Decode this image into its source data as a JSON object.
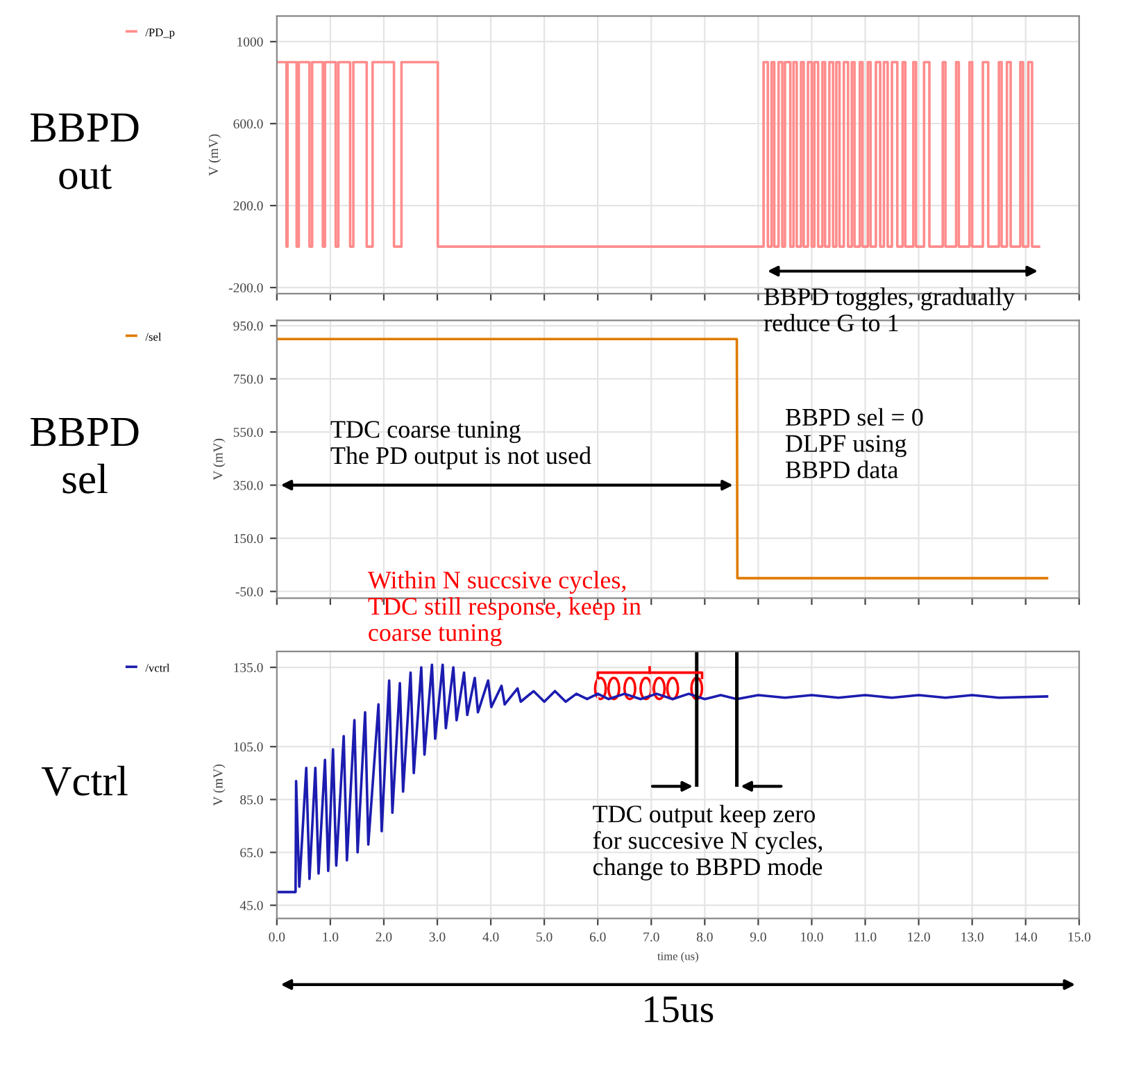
{
  "chart_data": [
    {
      "type": "step",
      "ylabel": "V (mV)",
      "xlim": [
        0,
        15
      ],
      "ylim": [
        -230,
        1125
      ],
      "yticks": [
        {
          "value": -200,
          "label": "-200.0"
        },
        {
          "value": 200,
          "label": "200.0"
        },
        {
          "value": 600,
          "label": "600.0"
        },
        {
          "value": 1000,
          "label": "1000"
        }
      ],
      "xticks": [
        {
          "value": 0,
          "label": null
        },
        {
          "value": 1,
          "label": null
        },
        {
          "value": 2,
          "label": null
        },
        {
          "value": 3,
          "label": null
        },
        {
          "value": 4,
          "label": null
        },
        {
          "value": 5,
          "label": null
        },
        {
          "value": 6,
          "label": null
        },
        {
          "value": 7,
          "label": null
        },
        {
          "value": 8,
          "label": null
        },
        {
          "value": 9,
          "label": null
        },
        {
          "value": 10,
          "label": null
        },
        {
          "value": 11,
          "label": null
        },
        {
          "value": 12,
          "label": null
        },
        {
          "value": 13,
          "label": null
        },
        {
          "value": 14,
          "label": null
        },
        {
          "value": 15,
          "label": null
        }
      ],
      "tick_labels": "y",
      "grid": true,
      "legend": "top left",
      "annotations": [
        "BBPD\nout",
        "BBPD toggles, gradually\nreduce G to 1"
      ],
      "series": [
        {
          "name": "/PD_p",
          "color": "#ff8c8c",
          "x": [
            0,
            0.18,
            0.2,
            0.37,
            0.41,
            0.61,
            0.66,
            0.86,
            0.9,
            1.1,
            1.15,
            1.37,
            1.43,
            1.68,
            1.79,
            2.19,
            2.33,
            3.01,
            9.1,
            9.18,
            9.25,
            9.3,
            9.38,
            9.45,
            9.5,
            9.6,
            9.66,
            9.72,
            9.8,
            9.85,
            9.93,
            10.0,
            10.05,
            10.12,
            10.2,
            10.25,
            10.33,
            10.4,
            10.46,
            10.52,
            10.6,
            10.68,
            10.75,
            10.8,
            10.9,
            10.95,
            11.05,
            11.1,
            11.2,
            11.28,
            11.35,
            11.42,
            11.5,
            11.6,
            11.7,
            11.75,
            11.9,
            11.95,
            12.1,
            12.2,
            12.45,
            12.5,
            12.7,
            12.75,
            12.95,
            13.0,
            13.2,
            13.3,
            13.5,
            13.55,
            13.65,
            13.72,
            13.9,
            13.95,
            14.05,
            14.12,
            14.25
          ],
          "values": [
            900,
            0,
            900,
            0,
            900,
            0,
            900,
            0,
            900,
            0,
            900,
            0,
            900,
            0,
            900,
            0,
            900,
            0,
            900,
            0,
            900,
            0,
            900,
            0,
            900,
            0,
            900,
            0,
            900,
            0,
            900,
            0,
            900,
            0,
            900,
            0,
            900,
            0,
            900,
            0,
            900,
            0,
            900,
            0,
            900,
            0,
            900,
            0,
            900,
            0,
            900,
            0,
            900,
            0,
            900,
            0,
            900,
            0,
            900,
            0,
            900,
            0,
            900,
            0,
            900,
            0,
            900,
            0,
            900,
            0,
            900,
            0,
            900,
            0,
            900,
            0,
            0
          ]
        }
      ]
    },
    {
      "type": "line",
      "ylabel": "V (mV)",
      "xlim": [
        0,
        15
      ],
      "ylim": [
        -75,
        970
      ],
      "yticks": [
        {
          "value": -50,
          "label": "-50.0"
        },
        {
          "value": 150,
          "label": "150.0"
        },
        {
          "value": 350,
          "label": "350.0"
        },
        {
          "value": 550,
          "label": "550.0"
        },
        {
          "value": 750,
          "label": "750.0"
        },
        {
          "value": 950,
          "label": "950.0"
        }
      ],
      "xticks": [
        {
          "value": 0,
          "label": null
        },
        {
          "value": 1,
          "label": null
        },
        {
          "value": 2,
          "label": null
        },
        {
          "value": 3,
          "label": null
        },
        {
          "value": 4,
          "label": null
        },
        {
          "value": 5,
          "label": null
        },
        {
          "value": 6,
          "label": null
        },
        {
          "value": 7,
          "label": null
        },
        {
          "value": 8,
          "label": null
        },
        {
          "value": 9,
          "label": null
        },
        {
          "value": 10,
          "label": null
        },
        {
          "value": 11,
          "label": null
        },
        {
          "value": 12,
          "label": null
        },
        {
          "value": 13,
          "label": null
        },
        {
          "value": 14,
          "label": null
        },
        {
          "value": 15,
          "label": null
        }
      ],
      "tick_labels": "y",
      "grid": true,
      "legend": "top left",
      "annotations": [
        "BBPD\nsel",
        "TDC coarse tuning\nThe PD output is not used",
        "BBPD sel = 0\nDLPF using\nBBPD data"
      ],
      "series": [
        {
          "name": "/sel",
          "color": "#e07b00",
          "x": [
            0,
            8.6,
            8.61,
            14.4
          ],
          "values": [
            900,
            900,
            0,
            0
          ]
        }
      ]
    },
    {
      "type": "line",
      "ylabel": "V (mV)",
      "xlabel": "time (us)",
      "xlim": [
        0,
        15
      ],
      "ylim": [
        40,
        141
      ],
      "yticks": [
        {
          "value": 45,
          "label": "45.0"
        },
        {
          "value": 65,
          "label": "65.0"
        },
        {
          "value": 85,
          "label": "85.0"
        },
        {
          "value": 105,
          "label": "105.0"
        },
        {
          "value": 135,
          "label": "135.0"
        }
      ],
      "xticks": [
        {
          "value": 0,
          "label": "0.0"
        },
        {
          "value": 1,
          "label": "1.0"
        },
        {
          "value": 2,
          "label": "2.0"
        },
        {
          "value": 3,
          "label": "3.0"
        },
        {
          "value": 4,
          "label": "4.0"
        },
        {
          "value": 5,
          "label": "5.0"
        },
        {
          "value": 6,
          "label": "6.0"
        },
        {
          "value": 7,
          "label": "7.0"
        },
        {
          "value": 8,
          "label": "8.0"
        },
        {
          "value": 9,
          "label": "9.0"
        },
        {
          "value": 10,
          "label": "10.0"
        },
        {
          "value": 11,
          "label": "11.0"
        },
        {
          "value": 12,
          "label": "12.0"
        },
        {
          "value": 13,
          "label": "13.0"
        },
        {
          "value": 14,
          "label": "14.0"
        },
        {
          "value": 15,
          "label": "15.0"
        }
      ],
      "grid": true,
      "legend": "top left",
      "ref_lines": [
        {
          "axis": "x",
          "value": 7.85,
          "color": "#000000"
        },
        {
          "axis": "x",
          "value": 8.6,
          "color": "#000000"
        }
      ],
      "annotations": [
        "Vctrl",
        "Within N succsive cycles,\nTDC still response, keep in\ncoarse tuning",
        "TDC output keep zero\nfor succesive N cycles,\nchange to BBPD mode",
        "15us"
      ],
      "series": [
        {
          "name": "/vctrl",
          "color": "#1c1cb0",
          "x": [
            0,
            0.35,
            0.36,
            0.42,
            0.55,
            0.61,
            0.72,
            0.78,
            0.9,
            0.96,
            1.05,
            1.11,
            1.25,
            1.31,
            1.45,
            1.51,
            1.65,
            1.71,
            1.9,
            1.96,
            2.1,
            2.16,
            2.3,
            2.36,
            2.5,
            2.56,
            2.7,
            2.76,
            2.9,
            2.96,
            3.1,
            3.16,
            3.3,
            3.36,
            3.5,
            3.56,
            3.7,
            3.76,
            3.95,
            4.01,
            4.2,
            4.26,
            4.5,
            4.56,
            4.8,
            5.0,
            5.2,
            5.4,
            5.6,
            5.8,
            6.0,
            6.2,
            6.5,
            6.8,
            7.1,
            7.4,
            7.7,
            8.0,
            8.3,
            8.6,
            9.0,
            9.5,
            10.0,
            10.5,
            11.0,
            11.5,
            12.0,
            12.5,
            13.0,
            13.5,
            14.4
          ],
          "values": [
            50,
            50,
            92,
            52,
            97,
            55,
            97,
            57,
            100,
            58,
            104,
            60,
            109,
            62,
            115,
            65,
            118,
            68,
            121,
            73,
            130,
            80,
            129,
            88,
            133,
            95,
            135,
            102,
            136,
            108,
            136,
            112,
            135,
            115,
            133,
            117,
            131,
            118,
            130,
            120,
            128,
            121,
            127,
            122,
            126,
            122,
            126,
            122,
            125,
            123,
            125,
            123,
            125,
            123,
            125,
            123,
            125,
            123,
            124.5,
            123,
            124.5,
            123.5,
            124.5,
            123.5,
            124.5,
            123.5,
            124.5,
            123.5,
            124.5,
            123.5,
            124
          ]
        }
      ]
    }
  ]
}
